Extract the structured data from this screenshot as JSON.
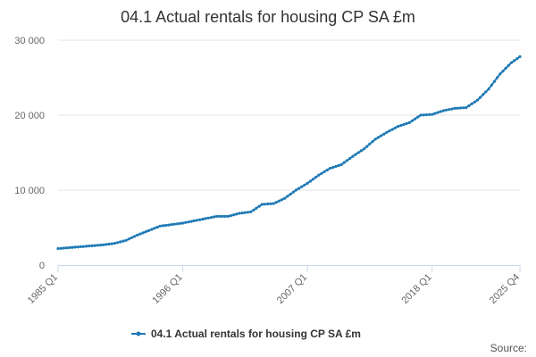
{
  "chart_data": {
    "type": "line",
    "title": "04.1 Actual rentals for housing CP SA £m",
    "xlabel": "",
    "ylabel": "",
    "x_start": "1985 Q1",
    "x_end": "2025 Q4",
    "x_tick_labels": [
      "1985 Q1",
      "1996 Q1",
      "2007 Q1",
      "2018 Q1",
      "2025 Q4"
    ],
    "y_tick_labels": [
      "0",
      "10 000",
      "20 000",
      "30 000"
    ],
    "y_ticks": [
      0,
      10000,
      20000,
      30000
    ],
    "ylim": [
      0,
      30000
    ],
    "grid": true,
    "legend_position": "bottom-center",
    "series_color": "#1f7ab5",
    "series": [
      {
        "name": "04.1 Actual rentals for housing CP SA £m",
        "anchors": [
          {
            "x": "1985 Q1",
            "y": 2200
          },
          {
            "x": "1987 Q1",
            "y": 2450
          },
          {
            "x": "1989 Q1",
            "y": 2700
          },
          {
            "x": "1990 Q1",
            "y": 2900
          },
          {
            "x": "1991 Q1",
            "y": 3300
          },
          {
            "x": "1992 Q1",
            "y": 4000
          },
          {
            "x": "1993 Q1",
            "y": 4600
          },
          {
            "x": "1994 Q1",
            "y": 5200
          },
          {
            "x": "1995 Q1",
            "y": 5400
          },
          {
            "x": "1996 Q1",
            "y": 5600
          },
          {
            "x": "1997 Q1",
            "y": 5900
          },
          {
            "x": "1998 Q1",
            "y": 6200
          },
          {
            "x": "1999 Q1",
            "y": 6500
          },
          {
            "x": "2000 Q1",
            "y": 6500
          },
          {
            "x": "2001 Q1",
            "y": 6900
          },
          {
            "x": "2002 Q1",
            "y": 7100
          },
          {
            "x": "2003 Q1",
            "y": 8100
          },
          {
            "x": "2004 Q1",
            "y": 8200
          },
          {
            "x": "2005 Q1",
            "y": 8900
          },
          {
            "x": "2006 Q1",
            "y": 10000
          },
          {
            "x": "2007 Q1",
            "y": 10900
          },
          {
            "x": "2008 Q1",
            "y": 12000
          },
          {
            "x": "2009 Q1",
            "y": 12900
          },
          {
            "x": "2010 Q1",
            "y": 13400
          },
          {
            "x": "2011 Q1",
            "y": 14500
          },
          {
            "x": "2012 Q1",
            "y": 15500
          },
          {
            "x": "2013 Q1",
            "y": 16800
          },
          {
            "x": "2014 Q1",
            "y": 17700
          },
          {
            "x": "2015 Q1",
            "y": 18500
          },
          {
            "x": "2016 Q1",
            "y": 19000
          },
          {
            "x": "2017 Q1",
            "y": 20000
          },
          {
            "x": "2018 Q1",
            "y": 20100
          },
          {
            "x": "2019 Q1",
            "y": 20600
          },
          {
            "x": "2020 Q1",
            "y": 20900
          },
          {
            "x": "2021 Q1",
            "y": 21000
          },
          {
            "x": "2022 Q1",
            "y": 22000
          },
          {
            "x": "2023 Q1",
            "y": 23500
          },
          {
            "x": "2024 Q1",
            "y": 25500
          },
          {
            "x": "2025 Q1",
            "y": 27000
          },
          {
            "x": "2025 Q4",
            "y": 27800
          }
        ]
      }
    ]
  },
  "credit": "Source:"
}
